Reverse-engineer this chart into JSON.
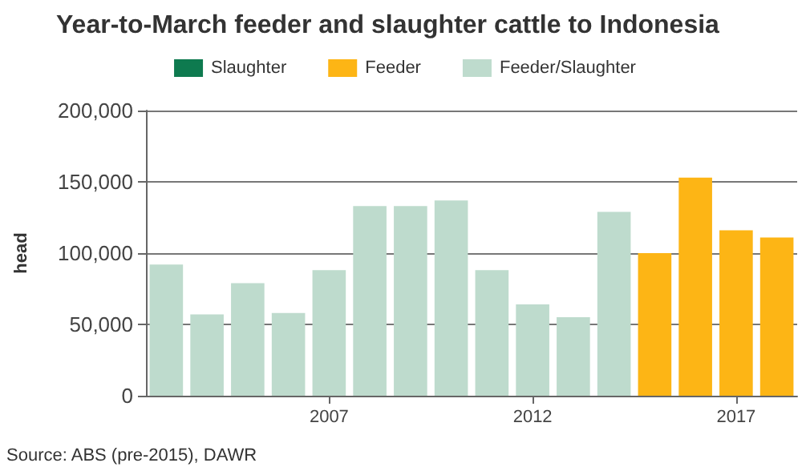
{
  "chart_data": {
    "type": "bar",
    "title": "Year-to-March feeder and slaughter cattle to Indonesia",
    "ylabel": "head",
    "categories": [
      null,
      null,
      null,
      null,
      "2007",
      null,
      null,
      null,
      null,
      "2012",
      null,
      null,
      null,
      null,
      "2017",
      null
    ],
    "stacked": true,
    "series": [
      {
        "name": "Slaughter",
        "color": "#0e7a4f",
        "values": [
          null,
          null,
          null,
          null,
          null,
          null,
          null,
          null,
          null,
          null,
          null,
          null,
          null,
          null,
          null,
          null
        ]
      },
      {
        "name": "Feeder",
        "color": "#fdb515",
        "values": [
          null,
          null,
          null,
          null,
          null,
          null,
          null,
          null,
          null,
          null,
          null,
          null,
          100000,
          153000,
          116000,
          111000
        ]
      },
      {
        "name": "Feeder/Slaughter",
        "color": "#bedbcd",
        "values": [
          92000,
          57000,
          79000,
          58000,
          88000,
          133000,
          133000,
          137000,
          88000,
          64000,
          55000,
          129000,
          null,
          null,
          null,
          null
        ]
      }
    ],
    "ylim": [
      0,
      200000
    ],
    "yticks": [
      0,
      {
        "value": 50000,
        "label": "50,000"
      },
      {
        "value": 100000,
        "label": "100,000"
      },
      {
        "value": 150000,
        "label": "150,000"
      },
      {
        "value": 200000,
        "label": "200,000"
      }
    ],
    "grid": "y",
    "legend": "top",
    "annotations": [
      "Source: ABS (pre-2015), DAWR"
    ]
  }
}
